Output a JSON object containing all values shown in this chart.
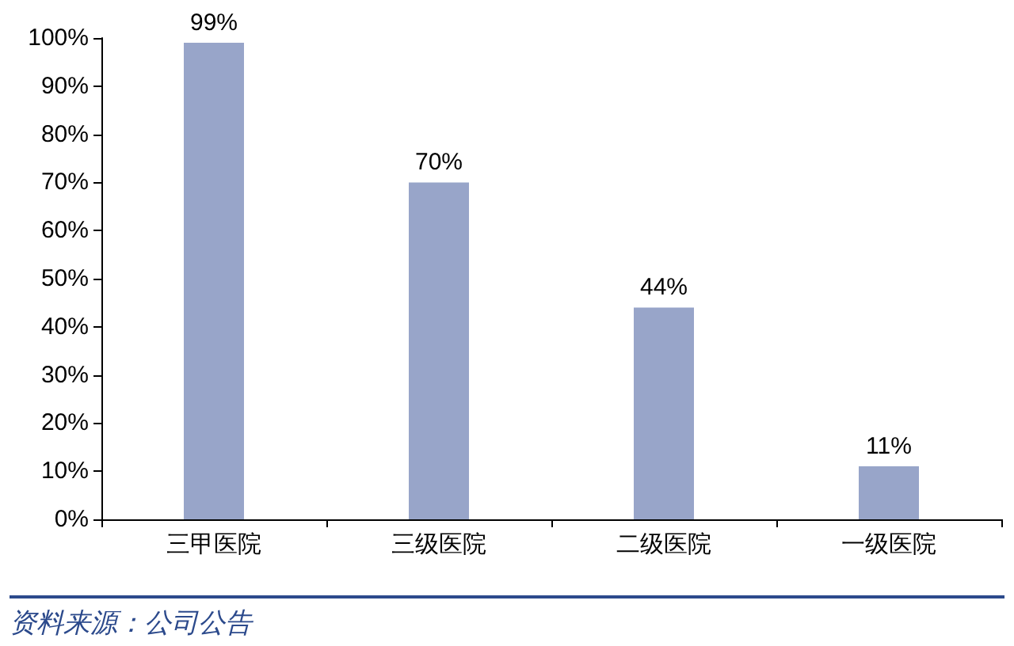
{
  "chart_data": {
    "type": "bar",
    "categories": [
      "三甲医院",
      "三级医院",
      "二级医院",
      "一级医院"
    ],
    "values": [
      99,
      70,
      44,
      11
    ],
    "value_labels": [
      "99%",
      "70%",
      "44%",
      "11%"
    ],
    "color": "#98a5c9",
    "ylim": [
      0,
      100
    ],
    "yticks": [
      {
        "value": 0,
        "label": "0%"
      },
      {
        "value": 10,
        "label": "10%"
      },
      {
        "value": 20,
        "label": "20%"
      },
      {
        "value": 30,
        "label": "30%"
      },
      {
        "value": 40,
        "label": "40%"
      },
      {
        "value": 50,
        "label": "50%"
      },
      {
        "value": 60,
        "label": "60%"
      },
      {
        "value": 70,
        "label": "70%"
      },
      {
        "value": 80,
        "label": "80%"
      },
      {
        "value": 90,
        "label": "90%"
      },
      {
        "value": 100,
        "label": "100%"
      }
    ],
    "annotations": [
      "资料来源：公司公告"
    ]
  }
}
